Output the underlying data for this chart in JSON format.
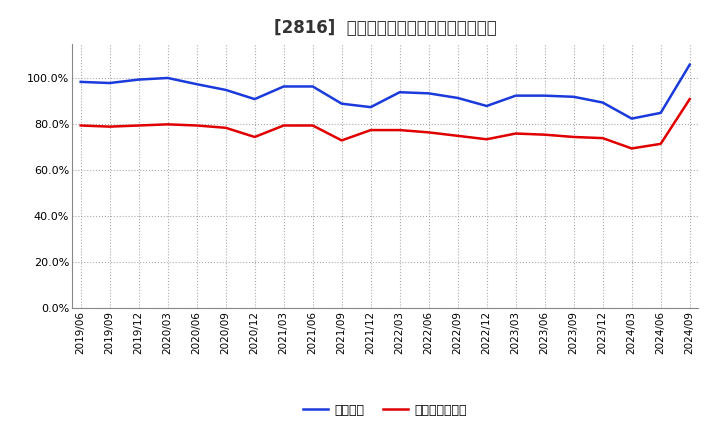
{
  "title": "[2816]  固定比率、固定長期適合率の推移",
  "x_labels": [
    "2019/06",
    "2019/09",
    "2019/12",
    "2020/03",
    "2020/06",
    "2020/09",
    "2020/12",
    "2021/03",
    "2021/06",
    "2021/09",
    "2021/12",
    "2022/03",
    "2022/06",
    "2022/09",
    "2022/12",
    "2023/03",
    "2023/06",
    "2023/09",
    "2023/12",
    "2024/03",
    "2024/06",
    "2024/09"
  ],
  "fixed_ratio": [
    98.5,
    98.0,
    99.5,
    100.2,
    97.5,
    95.0,
    91.0,
    96.5,
    96.5,
    89.0,
    87.5,
    94.0,
    93.5,
    91.5,
    88.0,
    92.5,
    92.5,
    92.0,
    89.5,
    82.5,
    85.0,
    106.0
  ],
  "fixed_long_ratio": [
    79.5,
    79.0,
    79.5,
    80.0,
    79.5,
    78.5,
    74.5,
    79.5,
    79.5,
    73.0,
    77.5,
    77.5,
    76.5,
    75.0,
    73.5,
    76.0,
    75.5,
    74.5,
    74.0,
    69.5,
    71.5,
    91.0
  ],
  "ylim": [
    0,
    115
  ],
  "yticks": [
    0.0,
    20.0,
    40.0,
    60.0,
    80.0,
    100.0
  ],
  "line_color_blue": "#1a3adb",
  "line_color_red": "#e00000",
  "bg_color": "#ffffff",
  "grid_color": "#aaaaaa",
  "legend_blue": "固定比率",
  "legend_red": "固定長期適合率",
  "title_fontsize": 12,
  "legend_fontsize": 9,
  "tick_fontsize": 7.5
}
